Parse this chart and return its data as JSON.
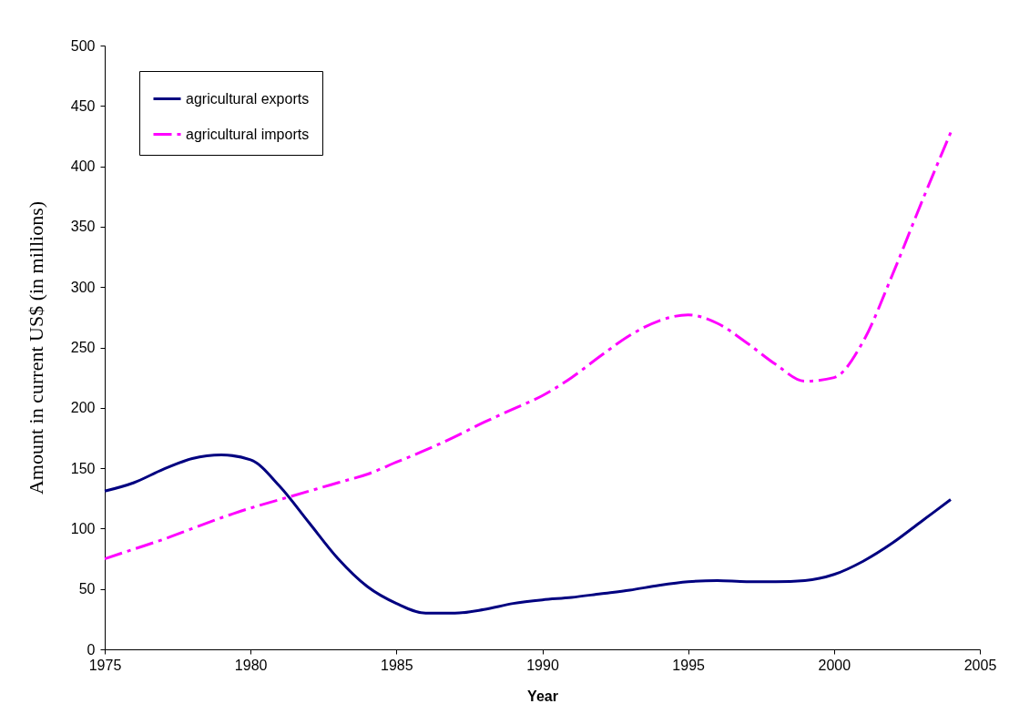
{
  "chart_data": {
    "type": "line",
    "xlabel": "Year",
    "ylabel": "Amount in current US$ (in millions)",
    "x": [
      1975,
      1976,
      1977,
      1978,
      1979,
      1980,
      1981,
      1982,
      1983,
      1984,
      1985,
      1986,
      1987,
      1988,
      1989,
      1990,
      1991,
      1992,
      1993,
      1994,
      1995,
      1996,
      1997,
      1998,
      1999,
      2000,
      2001,
      2002,
      2003,
      2004
    ],
    "series": [
      {
        "name": "agricultural exports",
        "color": "#000080",
        "line_style": "solid",
        "values": [
          131,
          138,
          149,
          158,
          161,
          157,
          135,
          105,
          75,
          52,
          38,
          30,
          30,
          33,
          38,
          41,
          43,
          46,
          49,
          53,
          56,
          57,
          56,
          56,
          57,
          62,
          73,
          88,
          106,
          124
        ]
      },
      {
        "name": "agricultural imports",
        "color": "#ff00ff",
        "line_style": "dashed",
        "values": [
          75,
          83,
          91,
          100,
          109,
          117,
          124,
          131,
          138,
          145,
          155,
          165,
          176,
          188,
          199,
          210,
          225,
          243,
          260,
          272,
          277,
          270,
          254,
          236,
          222,
          225,
          255,
          310,
          370,
          428
        ]
      }
    ],
    "xlim": [
      1975,
      2005
    ],
    "xticks": [
      1975,
      1980,
      1985,
      1990,
      1995,
      2000,
      2005
    ],
    "ylim": [
      0,
      500
    ],
    "yticks": [
      0,
      50,
      100,
      150,
      200,
      250,
      300,
      350,
      400,
      450,
      500
    ],
    "grid": false,
    "legend": "top left",
    "marker": "none"
  }
}
